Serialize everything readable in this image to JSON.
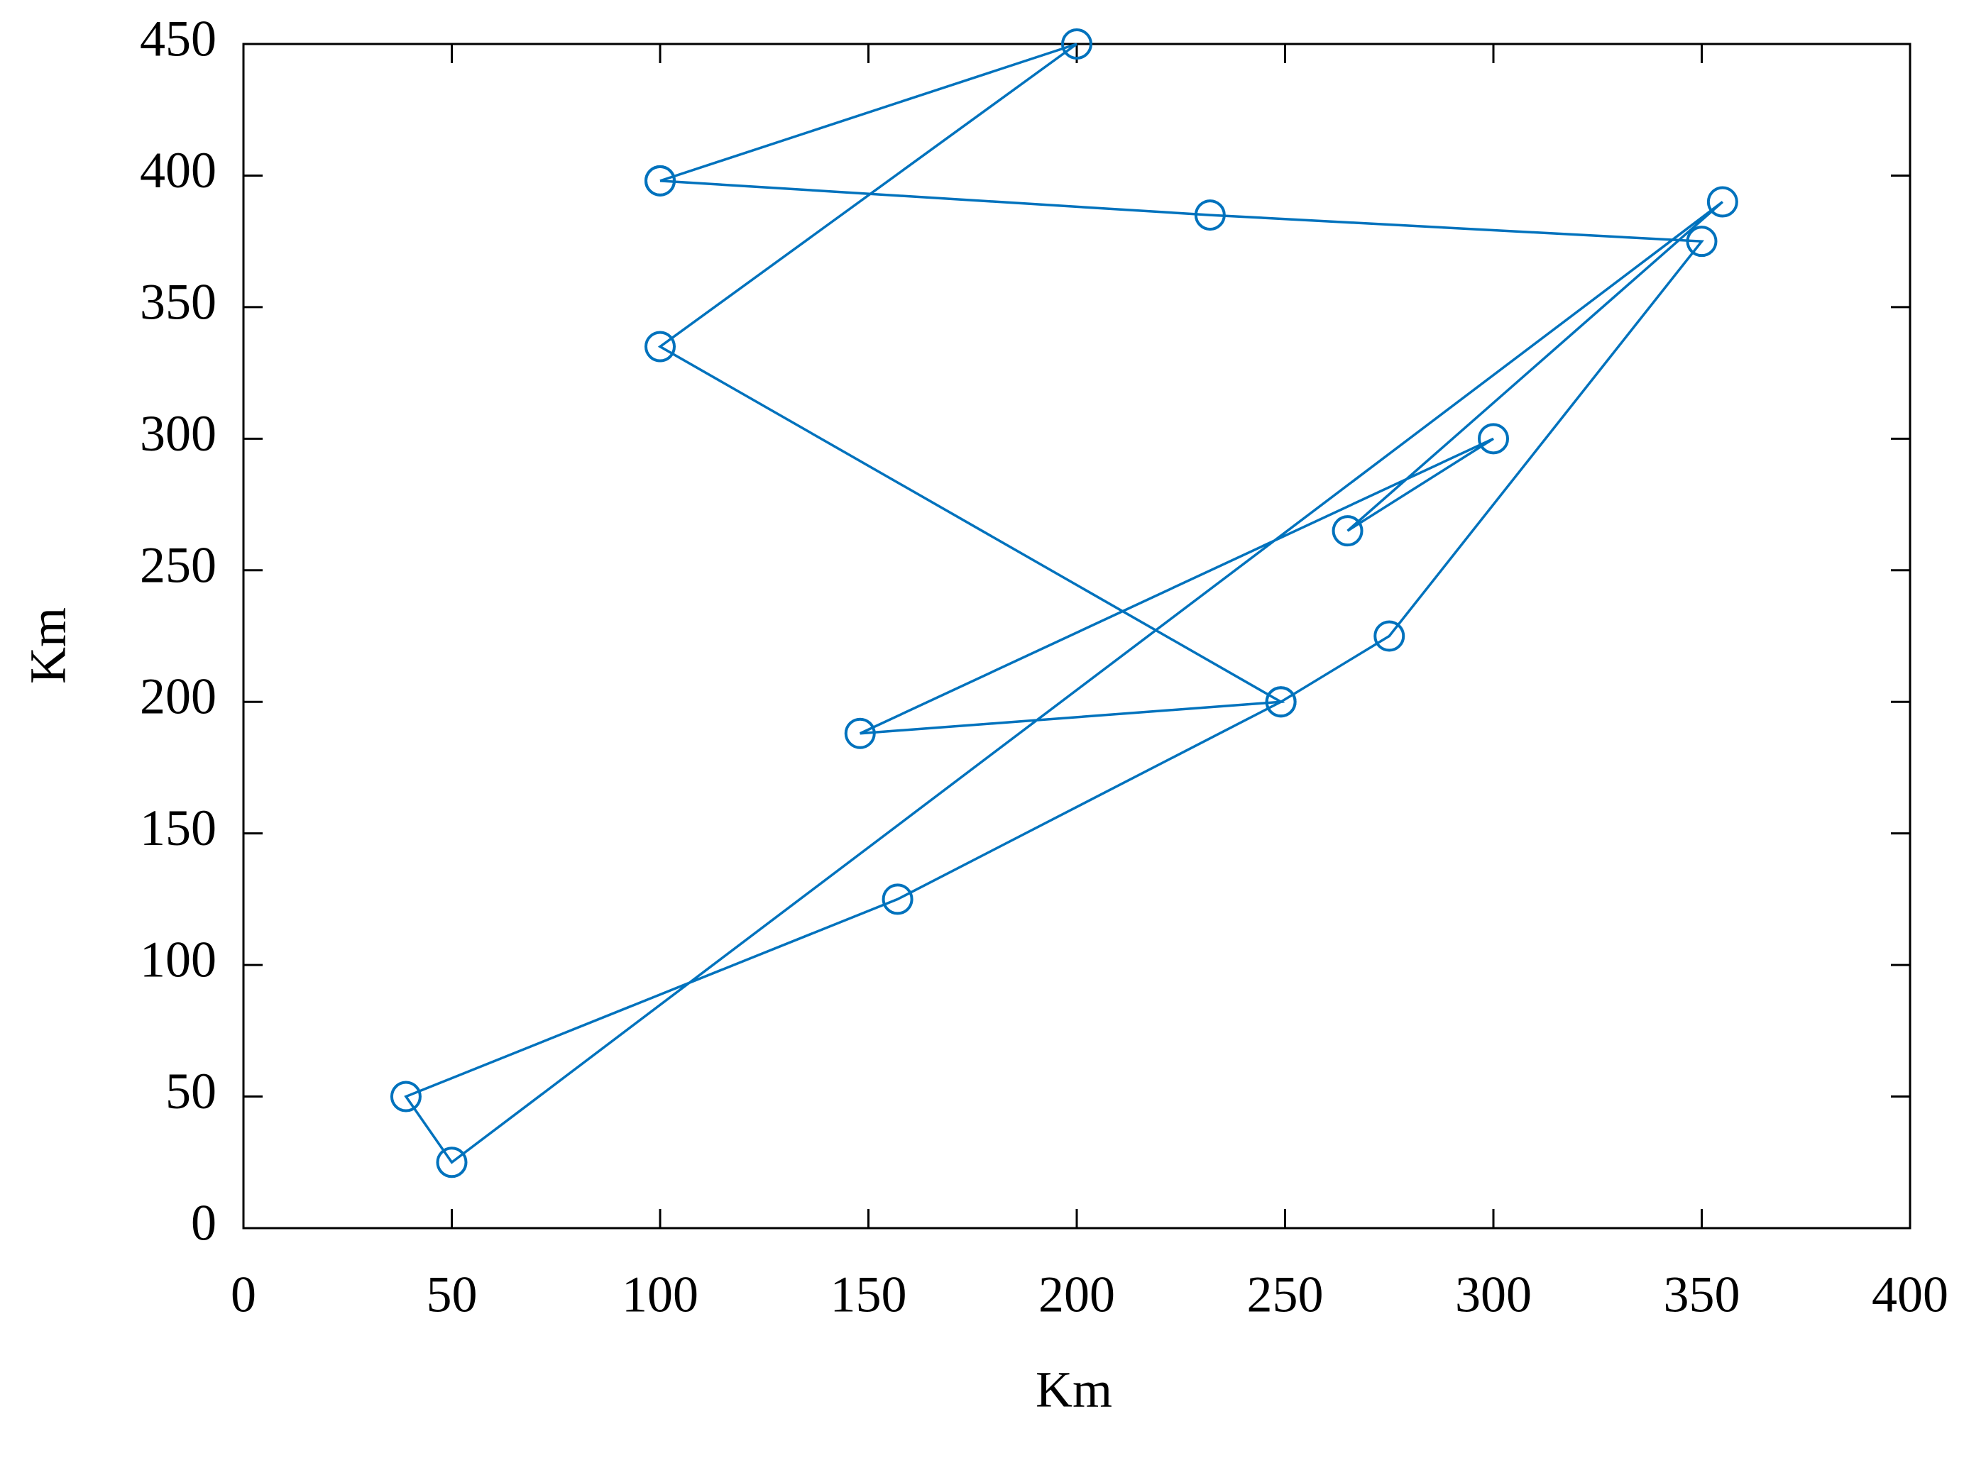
{
  "chart_data": {
    "type": "line",
    "marker": "o",
    "color": "#0072bd",
    "x_label": "Km",
    "y_label": "Km",
    "x": [
      100,
      232,
      350,
      275,
      249,
      157,
      39,
      50,
      355,
      265,
      300,
      148,
      249,
      100,
      200,
      100
    ],
    "values": [
      398,
      385,
      375,
      225,
      200,
      125,
      50,
      25,
      390,
      265,
      300,
      188,
      200,
      335,
      450,
      398
    ],
    "xlim": [
      0,
      400
    ],
    "xticks": [
      0,
      50,
      100,
      150,
      200,
      250,
      300,
      350,
      400
    ],
    "ylim": [
      0,
      450
    ],
    "yticks": [
      0,
      50,
      100,
      150,
      200,
      250,
      300,
      350,
      400,
      450
    ]
  }
}
